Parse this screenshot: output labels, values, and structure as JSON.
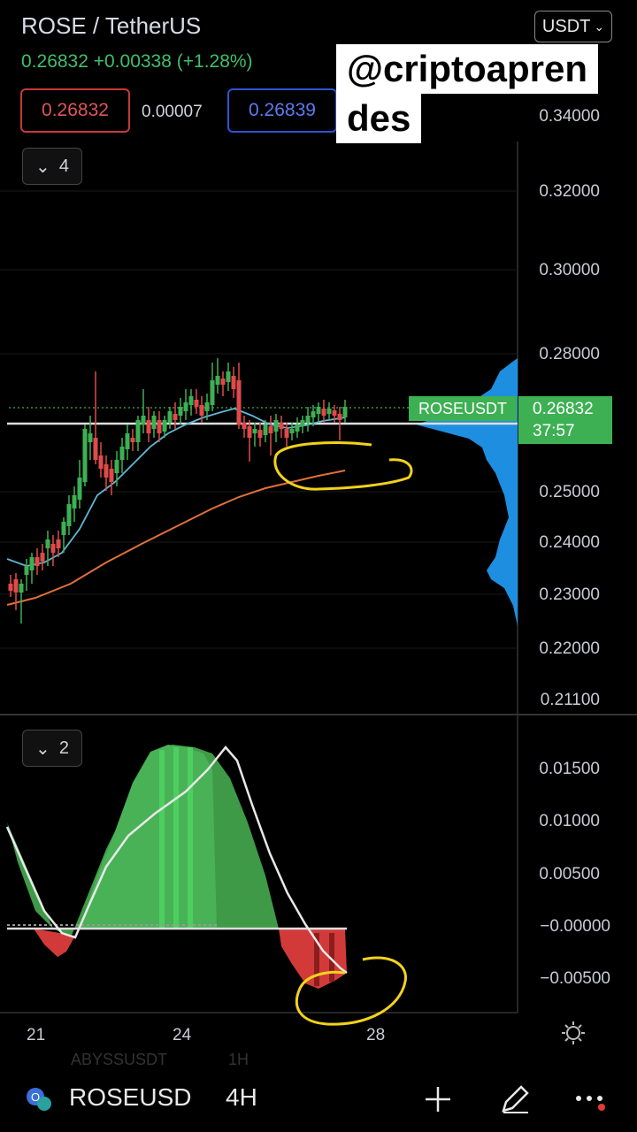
{
  "header": {
    "title": "ROSE / TetherUS",
    "quote": "0.26832 +0.00338 (+1.28%)",
    "currency_select": "USDT",
    "bid": "0.26832",
    "spread": "0.00007",
    "ask": "0.26839"
  },
  "watermark": {
    "line1": "@criptoapren",
    "line2": "des"
  },
  "main_pane": {
    "collapse_count": "4",
    "price_axis": [
      "0.34000",
      "0.32000",
      "0.30000",
      "0.28000",
      "0.25000",
      "0.24000",
      "0.23000",
      "0.22000",
      "0.21100"
    ],
    "last_price_tag": {
      "symbol": "ROSEUSDT",
      "price": "0.26832",
      "countdown": "37:57"
    }
  },
  "indicator_pane": {
    "collapse_count": "2",
    "axis": [
      "0.01500",
      "0.01000",
      "0.00500",
      "−0.00000",
      "−0.00500"
    ]
  },
  "time_axis": [
    "21",
    "24",
    "28"
  ],
  "bottom_bar": {
    "symbol": "ROSEUSD",
    "interval": "4H",
    "ghost_symbol": "ABYSSUSDT",
    "ghost_interval": "1H"
  },
  "colors": {
    "up": "#3db054",
    "down": "#e04a4a",
    "ema_fast": "#5fb8d8",
    "ema_slow": "#e0703a",
    "volume_profile": "#1e8fe0",
    "annotation": "#f2d21b"
  },
  "icons": [
    "chevron-down-icon",
    "settings-sun-icon",
    "plus-icon",
    "pencil-icon",
    "more-icon"
  ]
}
